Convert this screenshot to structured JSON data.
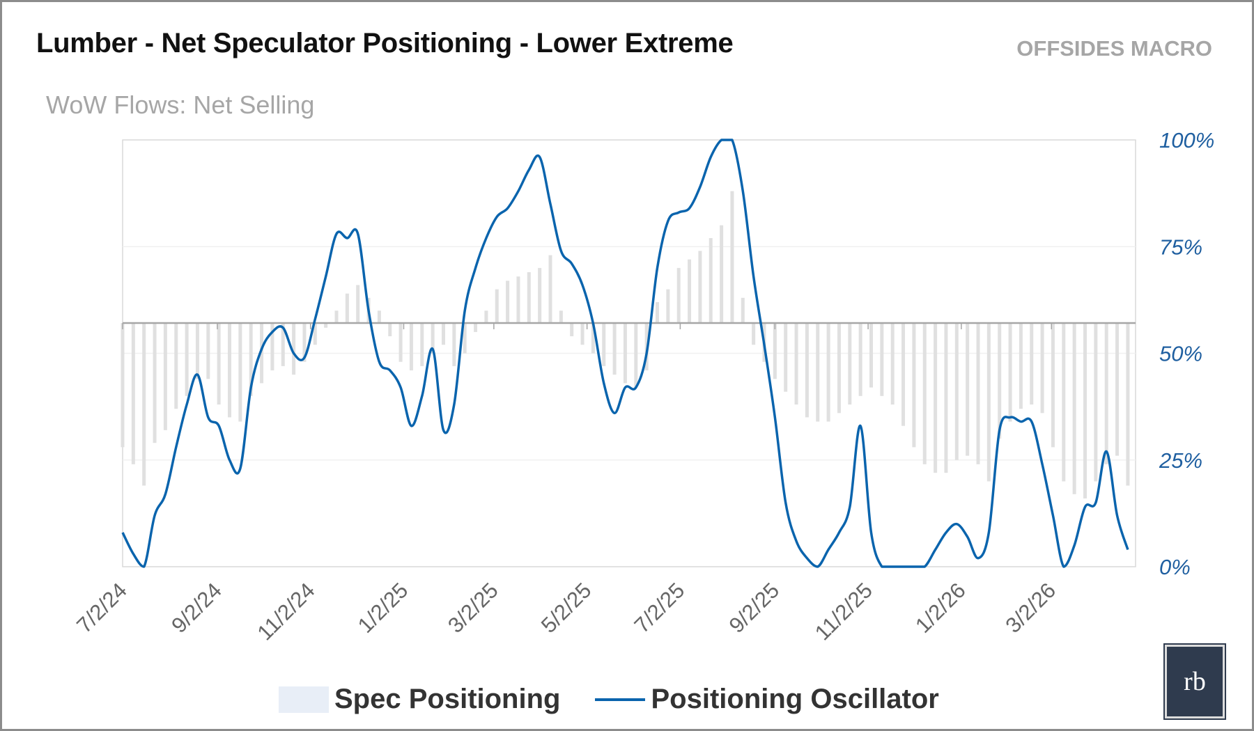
{
  "header": {
    "title": "Lumber - Net Speculator Positioning - Lower Extreme",
    "brand": "OFFSIDES MACRO",
    "subtitle": "WoW Flows: Net Selling"
  },
  "logo": {
    "text": "rb"
  },
  "chart_data": {
    "type": "bar+line",
    "title": "Lumber - Net Speculator Positioning - Lower Extreme",
    "subtitle": "WoW Flows: Net Selling",
    "x_start": "7/2/24",
    "frequency": "weekly",
    "x_tick_labels": [
      "7/2/24",
      "9/2/24",
      "11/2/24",
      "1/2/25",
      "3/2/25",
      "5/2/25",
      "7/2/25",
      "9/2/25",
      "11/2/25",
      "1/2/26",
      "3/2/26"
    ],
    "y_axis": {
      "side": "right",
      "ylim": [
        0,
        100
      ],
      "ticks": [
        "0%",
        "25%",
        "50%",
        "75%",
        "100%"
      ]
    },
    "grid": true,
    "legend": {
      "placement": "bottom",
      "entries": [
        "Spec Positioning",
        "Positioning Oscillator"
      ]
    },
    "colors": {
      "bars": "#e0e0e0",
      "line": "#0a64ad",
      "legend_bar": "#e8eef7",
      "axis_labels": "#1f5fa0"
    },
    "series": [
      {
        "name": "Spec Positioning",
        "type": "bar",
        "values": [
          28,
          24,
          19,
          29,
          32,
          37,
          40,
          44,
          44,
          38,
          35,
          34,
          40,
          43,
          46,
          47,
          45,
          48,
          52,
          56,
          60,
          64,
          66,
          63,
          60,
          54,
          48,
          46,
          47,
          50,
          52,
          47,
          50,
          55,
          60,
          65,
          67,
          68,
          69,
          70,
          73,
          60,
          54,
          52,
          50,
          47,
          45,
          43,
          42,
          46,
          62,
          65,
          70,
          72,
          74,
          77,
          80,
          88,
          63,
          52,
          48,
          44,
          41,
          38,
          35,
          34,
          34,
          36,
          38,
          40,
          42,
          40,
          38,
          33,
          28,
          24,
          22,
          22,
          25,
          26,
          24,
          20,
          30,
          34,
          37,
          38,
          36,
          28,
          20,
          17,
          16,
          20,
          24,
          26,
          19
        ]
      },
      {
        "name": "Positioning Oscillator",
        "type": "line",
        "values": [
          8,
          3,
          0,
          12,
          17,
          28,
          38,
          45,
          35,
          33,
          25,
          23,
          42,
          51,
          55,
          56,
          50,
          49,
          58,
          68,
          78,
          77,
          78,
          60,
          48,
          46,
          42,
          33,
          40,
          51,
          32,
          38,
          60,
          70,
          77,
          82,
          84,
          88,
          93,
          96,
          85,
          74,
          71,
          66,
          57,
          43,
          36,
          42,
          42,
          50,
          70,
          81,
          83,
          84,
          89,
          96,
          100,
          100,
          88,
          68,
          52,
          35,
          15,
          6,
          2,
          0,
          4,
          8,
          14,
          33,
          8,
          0,
          0,
          0,
          0,
          0,
          4,
          8,
          10,
          7,
          2,
          8,
          32,
          35,
          34,
          34,
          24,
          12,
          0,
          5,
          14,
          15,
          27,
          12,
          4
        ]
      }
    ]
  }
}
